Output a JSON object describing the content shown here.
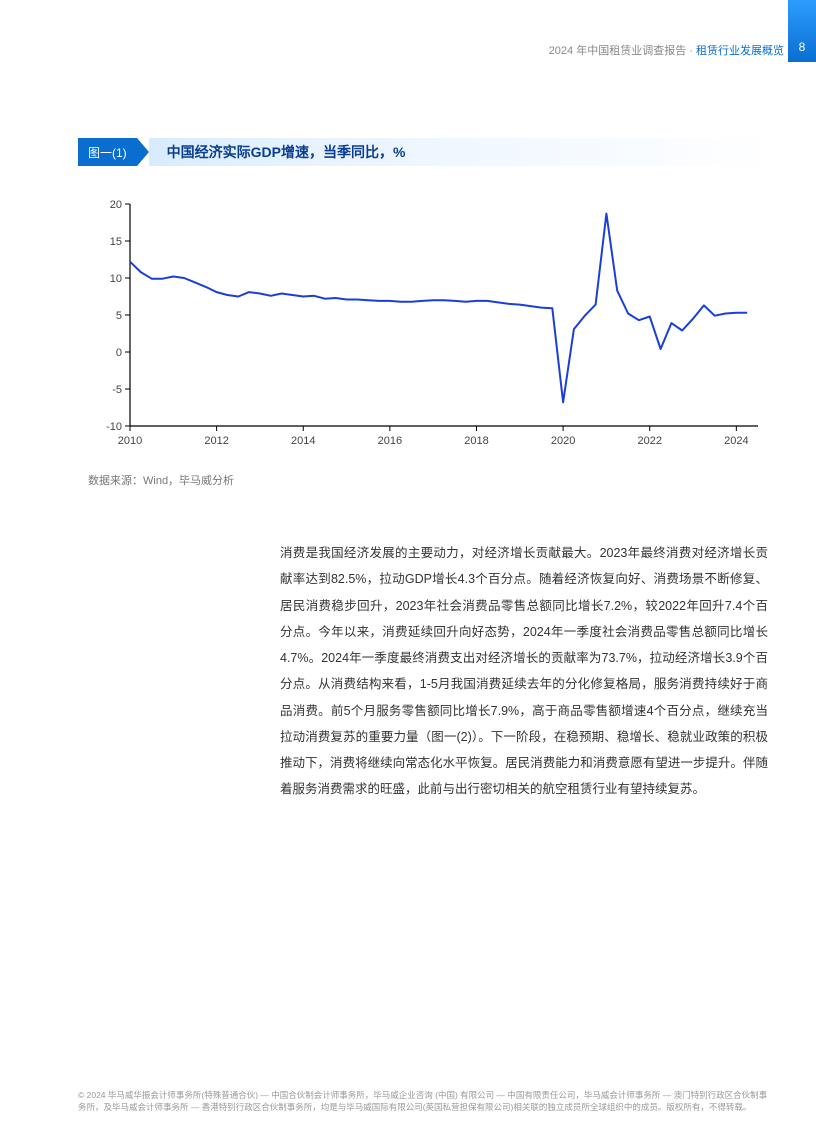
{
  "header": {
    "report": "2024 年中国租赁业调查报告",
    "section": "租赁行业发展概览",
    "page": "8"
  },
  "figure": {
    "tag": "图一(1)",
    "title": "中国经济实际GDP增速，当季同比，%",
    "source": "数据来源：Wind，毕马威分析"
  },
  "chart": {
    "type": "line",
    "line_color": "#1b3fd6",
    "line_width": 2,
    "axis_color": "#000000",
    "background_color": "#ffffff",
    "ylim": [
      -10,
      20
    ],
    "ytick_step": 5,
    "xlim": [
      2010,
      2024.5
    ],
    "xticks": [
      2010,
      2012,
      2014,
      2016,
      2018,
      2020,
      2022,
      2024
    ],
    "font_size_ticks": 11,
    "series": [
      {
        "x": 2010.0,
        "y": 12.2
      },
      {
        "x": 2010.25,
        "y": 10.8
      },
      {
        "x": 2010.5,
        "y": 9.9
      },
      {
        "x": 2010.75,
        "y": 9.9
      },
      {
        "x": 2011.0,
        "y": 10.2
      },
      {
        "x": 2011.25,
        "y": 10.0
      },
      {
        "x": 2011.5,
        "y": 9.4
      },
      {
        "x": 2011.75,
        "y": 8.8
      },
      {
        "x": 2012.0,
        "y": 8.1
      },
      {
        "x": 2012.25,
        "y": 7.7
      },
      {
        "x": 2012.5,
        "y": 7.5
      },
      {
        "x": 2012.75,
        "y": 8.1
      },
      {
        "x": 2013.0,
        "y": 7.9
      },
      {
        "x": 2013.25,
        "y": 7.6
      },
      {
        "x": 2013.5,
        "y": 7.9
      },
      {
        "x": 2013.75,
        "y": 7.7
      },
      {
        "x": 2014.0,
        "y": 7.5
      },
      {
        "x": 2014.25,
        "y": 7.6
      },
      {
        "x": 2014.5,
        "y": 7.2
      },
      {
        "x": 2014.75,
        "y": 7.3
      },
      {
        "x": 2015.0,
        "y": 7.1
      },
      {
        "x": 2015.25,
        "y": 7.1
      },
      {
        "x": 2015.5,
        "y": 7.0
      },
      {
        "x": 2015.75,
        "y": 6.9
      },
      {
        "x": 2016.0,
        "y": 6.9
      },
      {
        "x": 2016.25,
        "y": 6.8
      },
      {
        "x": 2016.5,
        "y": 6.8
      },
      {
        "x": 2016.75,
        "y": 6.9
      },
      {
        "x": 2017.0,
        "y": 7.0
      },
      {
        "x": 2017.25,
        "y": 7.0
      },
      {
        "x": 2017.5,
        "y": 6.9
      },
      {
        "x": 2017.75,
        "y": 6.8
      },
      {
        "x": 2018.0,
        "y": 6.9
      },
      {
        "x": 2018.25,
        "y": 6.9
      },
      {
        "x": 2018.5,
        "y": 6.7
      },
      {
        "x": 2018.75,
        "y": 6.5
      },
      {
        "x": 2019.0,
        "y": 6.4
      },
      {
        "x": 2019.25,
        "y": 6.2
      },
      {
        "x": 2019.5,
        "y": 6.0
      },
      {
        "x": 2019.75,
        "y": 5.9
      },
      {
        "x": 2020.0,
        "y": -6.8
      },
      {
        "x": 2020.25,
        "y": 3.1
      },
      {
        "x": 2020.5,
        "y": 4.9
      },
      {
        "x": 2020.75,
        "y": 6.4
      },
      {
        "x": 2021.0,
        "y": 18.7
      },
      {
        "x": 2021.25,
        "y": 8.3
      },
      {
        "x": 2021.5,
        "y": 5.2
      },
      {
        "x": 2021.75,
        "y": 4.3
      },
      {
        "x": 2022.0,
        "y": 4.8
      },
      {
        "x": 2022.25,
        "y": 0.4
      },
      {
        "x": 2022.5,
        "y": 3.9
      },
      {
        "x": 2022.75,
        "y": 2.9
      },
      {
        "x": 2023.0,
        "y": 4.5
      },
      {
        "x": 2023.25,
        "y": 6.3
      },
      {
        "x": 2023.5,
        "y": 4.9
      },
      {
        "x": 2023.75,
        "y": 5.2
      },
      {
        "x": 2024.0,
        "y": 5.3
      },
      {
        "x": 2024.25,
        "y": 5.3
      }
    ]
  },
  "paragraph": "消费是我国经济发展的主要动力，对经济增长贡献最大。2023年最终消费对经济增长贡献率达到82.5%，拉动GDP增长4.3个百分点。随着经济恢复向好、消费场景不断修复、居民消费稳步回升，2023年社会消费品零售总额同比增长7.2%，较2022年回升7.4个百分点。今年以来，消费延续回升向好态势，2024年一季度社会消费品零售总额同比增长4.7%。2024年一季度最终消费支出对经济增长的贡献率为73.7%，拉动经济增长3.9个百分点。从消费结构来看，1-5月我国消费延续去年的分化修复格局，服务消费持续好于商品消费。前5个月服务零售额同比增长7.9%，高于商品零售额增速4个百分点，继续充当拉动消费复苏的重要力量（图一(2)）。下一阶段，在稳预期、稳增长、稳就业政策的积极推动下，消费将继续向常态化水平恢复。居民消费能力和消费意愿有望进一步提升。伴随着服务消费需求的旺盛，此前与出行密切相关的航空租赁行业有望持续复苏。",
  "footer": "© 2024 毕马威华振会计师事务所(特殊普通合伙) — 中国合伙制会计师事务所，毕马威企业咨询 (中国) 有限公司 — 中国有限责任公司，毕马威会计师事务所 — 澳门特别行政区合伙制事务所，及毕马威会计师事务所 — 香港特别行政区合伙制事务所，均是与毕马威国际有限公司(英国私营担保有限公司)相关联的独立成员所全球组织中的成员。版权所有，不得转载。"
}
